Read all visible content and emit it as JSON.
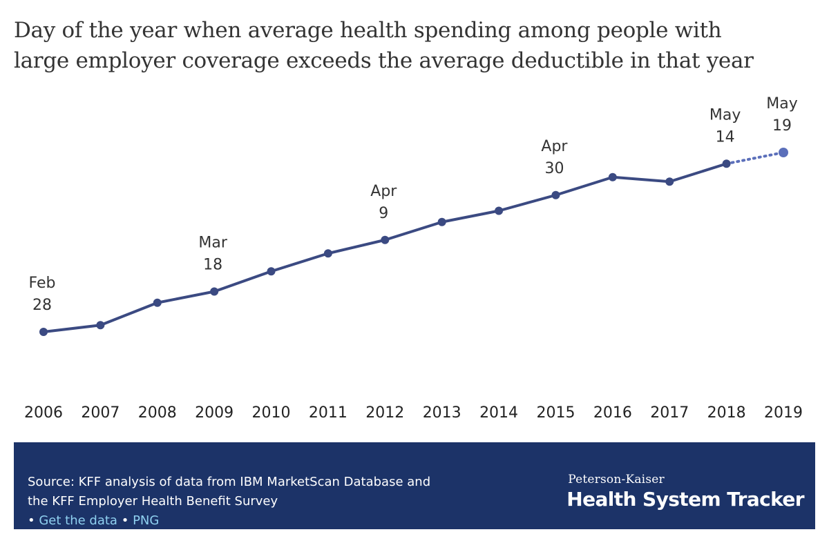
{
  "title_line1": "Day of the year when average health spending among people with",
  "title_line2": "large employer coverage exceeds the average deductible in that year",
  "chart_data": {
    "type": "line",
    "x": [
      "2006",
      "2007",
      "2008",
      "2009",
      "2010",
      "2011",
      "2012",
      "2013",
      "2014",
      "2015",
      "2016",
      "2017",
      "2018",
      "2019"
    ],
    "values": [
      59,
      62,
      72,
      77,
      86,
      94,
      100,
      108,
      113,
      120,
      128,
      126,
      134,
      139
    ],
    "value_unit": "day of year",
    "projected_from_index": 12,
    "ylim": [
      30,
      150
    ],
    "grid": false,
    "data_labels": [
      {
        "index": 0,
        "month": "Feb",
        "day": "28"
      },
      {
        "index": 3,
        "month": "Mar",
        "day": "18"
      },
      {
        "index": 6,
        "month": "Apr",
        "day": "9"
      },
      {
        "index": 9,
        "month": "Apr",
        "day": "30"
      },
      {
        "index": 12,
        "month": "May",
        "day": "14"
      },
      {
        "index": 13,
        "month": "May",
        "day": "19"
      }
    ],
    "colors": {
      "actual": "#3b4a82",
      "projected": "#5b6fba"
    }
  },
  "footer": {
    "source_line1": "Source: KFF analysis of data from IBM MarketScan Database and",
    "source_line2": "the KFF Employer Health Benefit Survey",
    "bullet": "•",
    "get_data_link": "Get the data",
    "png_link": "PNG",
    "brand_top": "Peterson-Kaiser",
    "brand_main": "Health System Tracker",
    "background": "#1c3368"
  }
}
